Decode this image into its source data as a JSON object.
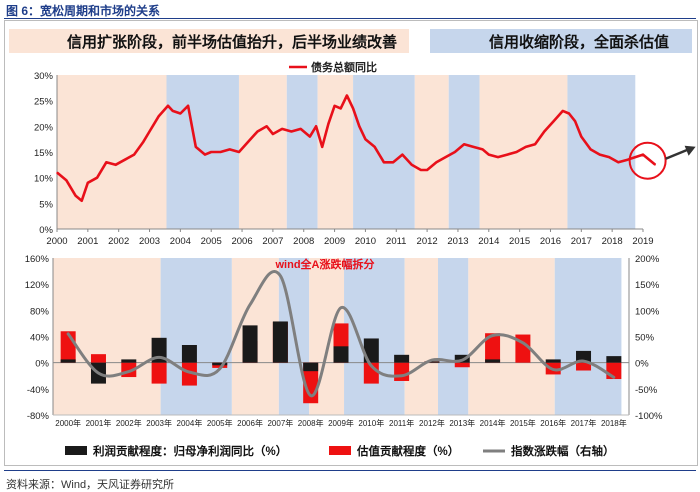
{
  "figure_title": "图 6：宽松周期和市场的关系",
  "source": "资料来源：Wind，天风证券研究所",
  "phase_legend": {
    "expansion": "信用扩张阶段，前半场估值抬升，后半场业绩改善",
    "contraction": "信用收缩阶段，全面杀估值"
  },
  "colors": {
    "expansion": "#fbe4d6",
    "contraction": "#c6d6ec",
    "debt_line": "#e8101a",
    "earnings": "#1a1a1a",
    "valuation": "#ee1111",
    "index": "#7f7f7f"
  },
  "phases": [
    {
      "type": "expansion",
      "start": 2000.0,
      "end": 2003.55
    },
    {
      "type": "contraction",
      "start": 2003.55,
      "end": 2005.9
    },
    {
      "type": "expansion",
      "start": 2005.9,
      "end": 2007.45
    },
    {
      "type": "contraction",
      "start": 2007.45,
      "end": 2008.45
    },
    {
      "type": "expansion",
      "start": 2008.45,
      "end": 2009.6
    },
    {
      "type": "contraction",
      "start": 2009.6,
      "end": 2011.6
    },
    {
      "type": "expansion",
      "start": 2011.6,
      "end": 2012.7
    },
    {
      "type": "contraction",
      "start": 2012.7,
      "end": 2013.7
    },
    {
      "type": "expansion",
      "start": 2013.7,
      "end": 2016.55
    },
    {
      "type": "contraction",
      "start": 2016.55,
      "end": 2018.75
    }
  ],
  "chart_data": [
    {
      "type": "line",
      "series_name": "债务总额同比",
      "ylim": [
        0,
        30
      ],
      "y_ticks": [
        "0%",
        "5%",
        "10%",
        "15%",
        "20%",
        "25%",
        "30%"
      ],
      "x_ticks": [
        "2000",
        "2001",
        "2002",
        "2003",
        "2004",
        "2005",
        "2006",
        "2007",
        "2008",
        "2009",
        "2010",
        "2011",
        "2012",
        "2013",
        "2014",
        "2015",
        "2016",
        "2017",
        "2018",
        "2019"
      ],
      "x": [
        2000.0,
        2000.3,
        2000.6,
        2000.8,
        2001.0,
        2001.3,
        2001.6,
        2001.9,
        2002.2,
        2002.5,
        2002.8,
        2003.0,
        2003.3,
        2003.6,
        2003.75,
        2004.0,
        2004.25,
        2004.5,
        2004.8,
        2005.0,
        2005.3,
        2005.6,
        2005.9,
        2006.2,
        2006.5,
        2006.8,
        2007.0,
        2007.3,
        2007.6,
        2007.9,
        2008.2,
        2008.4,
        2008.6,
        2008.8,
        2009.0,
        2009.2,
        2009.4,
        2009.6,
        2009.8,
        2010.0,
        2010.3,
        2010.6,
        2010.9,
        2011.2,
        2011.5,
        2011.8,
        2012.0,
        2012.3,
        2012.6,
        2012.9,
        2013.2,
        2013.5,
        2013.8,
        2014.0,
        2014.3,
        2014.6,
        2014.9,
        2015.2,
        2015.5,
        2015.8,
        2016.1,
        2016.4,
        2016.6,
        2016.8,
        2017.0,
        2017.3,
        2017.6,
        2017.9,
        2018.2,
        2018.5,
        2018.75,
        2019.0,
        2019.2,
        2019.4
      ],
      "values": [
        11.0,
        9.5,
        6.5,
        5.5,
        9.0,
        10.0,
        13.0,
        12.5,
        13.5,
        14.5,
        17.0,
        19.0,
        22.0,
        24.0,
        23.0,
        22.5,
        24.0,
        16.0,
        14.5,
        15.0,
        15.0,
        15.5,
        15.0,
        17.0,
        19.0,
        20.0,
        18.5,
        19.5,
        19.0,
        19.5,
        18.0,
        20.0,
        16.0,
        20.5,
        24.0,
        23.5,
        26.0,
        23.5,
        20.0,
        17.5,
        16.0,
        13.0,
        13.0,
        14.5,
        12.5,
        11.5,
        11.5,
        13.0,
        14.0,
        15.0,
        16.5,
        16.0,
        15.5,
        14.5,
        14.0,
        14.5,
        15.0,
        16.0,
        16.5,
        19.0,
        21.0,
        23.0,
        22.5,
        21.0,
        18.0,
        15.5,
        14.5,
        14.0,
        13.0,
        13.5,
        14.0,
        14.5,
        13.5,
        12.5
      ]
    },
    {
      "type": "bar",
      "title": "wind全A涨跌幅拆分",
      "categories": [
        "2000年",
        "2001年",
        "2002年",
        "2003年",
        "2004年",
        "2005年",
        "2006年",
        "2007年",
        "2008年",
        "2009年",
        "2010年",
        "2011年",
        "2012年",
        "2013年",
        "2014年",
        "2015年",
        "2016年",
        "2017年",
        "2018年"
      ],
      "x": [
        2000,
        2001,
        2002,
        2003,
        2004,
        2005,
        2006,
        2007,
        2008,
        2009,
        2010,
        2011,
        2012,
        2013,
        2014,
        2015,
        2016,
        2017,
        2018
      ],
      "ylim_left": [
        -80,
        160
      ],
      "ylim_right": [
        -100,
        200
      ],
      "y_ticks_left": [
        "-80%",
        "-40%",
        "0%",
        "40%",
        "80%",
        "120%",
        "160%"
      ],
      "y_ticks_right": [
        "-100%",
        "-50%",
        "0%",
        "50%",
        "100%",
        "150%",
        "200%"
      ],
      "series": [
        {
          "name": "利润贡献程度：归母净利润同比（%）",
          "axis": "left",
          "values": [
            5,
            -32,
            5,
            38,
            27,
            -4,
            57,
            63,
            -13,
            25,
            37,
            12,
            2,
            12,
            5,
            0,
            5,
            18,
            10
          ]
        },
        {
          "name": "估值贡献程度（%）",
          "axis": "left",
          "values": [
            48,
            13,
            -22,
            -32,
            -35,
            -8,
            33,
            62,
            -62,
            60,
            -32,
            -28,
            2,
            -7,
            45,
            43,
            -18,
            -12,
            -25
          ]
        },
        {
          "name": "指数涨跌幅（右轴）",
          "axis": "right",
          "values": [
            55,
            -20,
            -17,
            10,
            -18,
            -12,
            111,
            166,
            -63,
            105,
            -6,
            -25,
            5,
            5,
            52,
            38,
            -13,
            3,
            -28
          ]
        }
      ]
    }
  ]
}
